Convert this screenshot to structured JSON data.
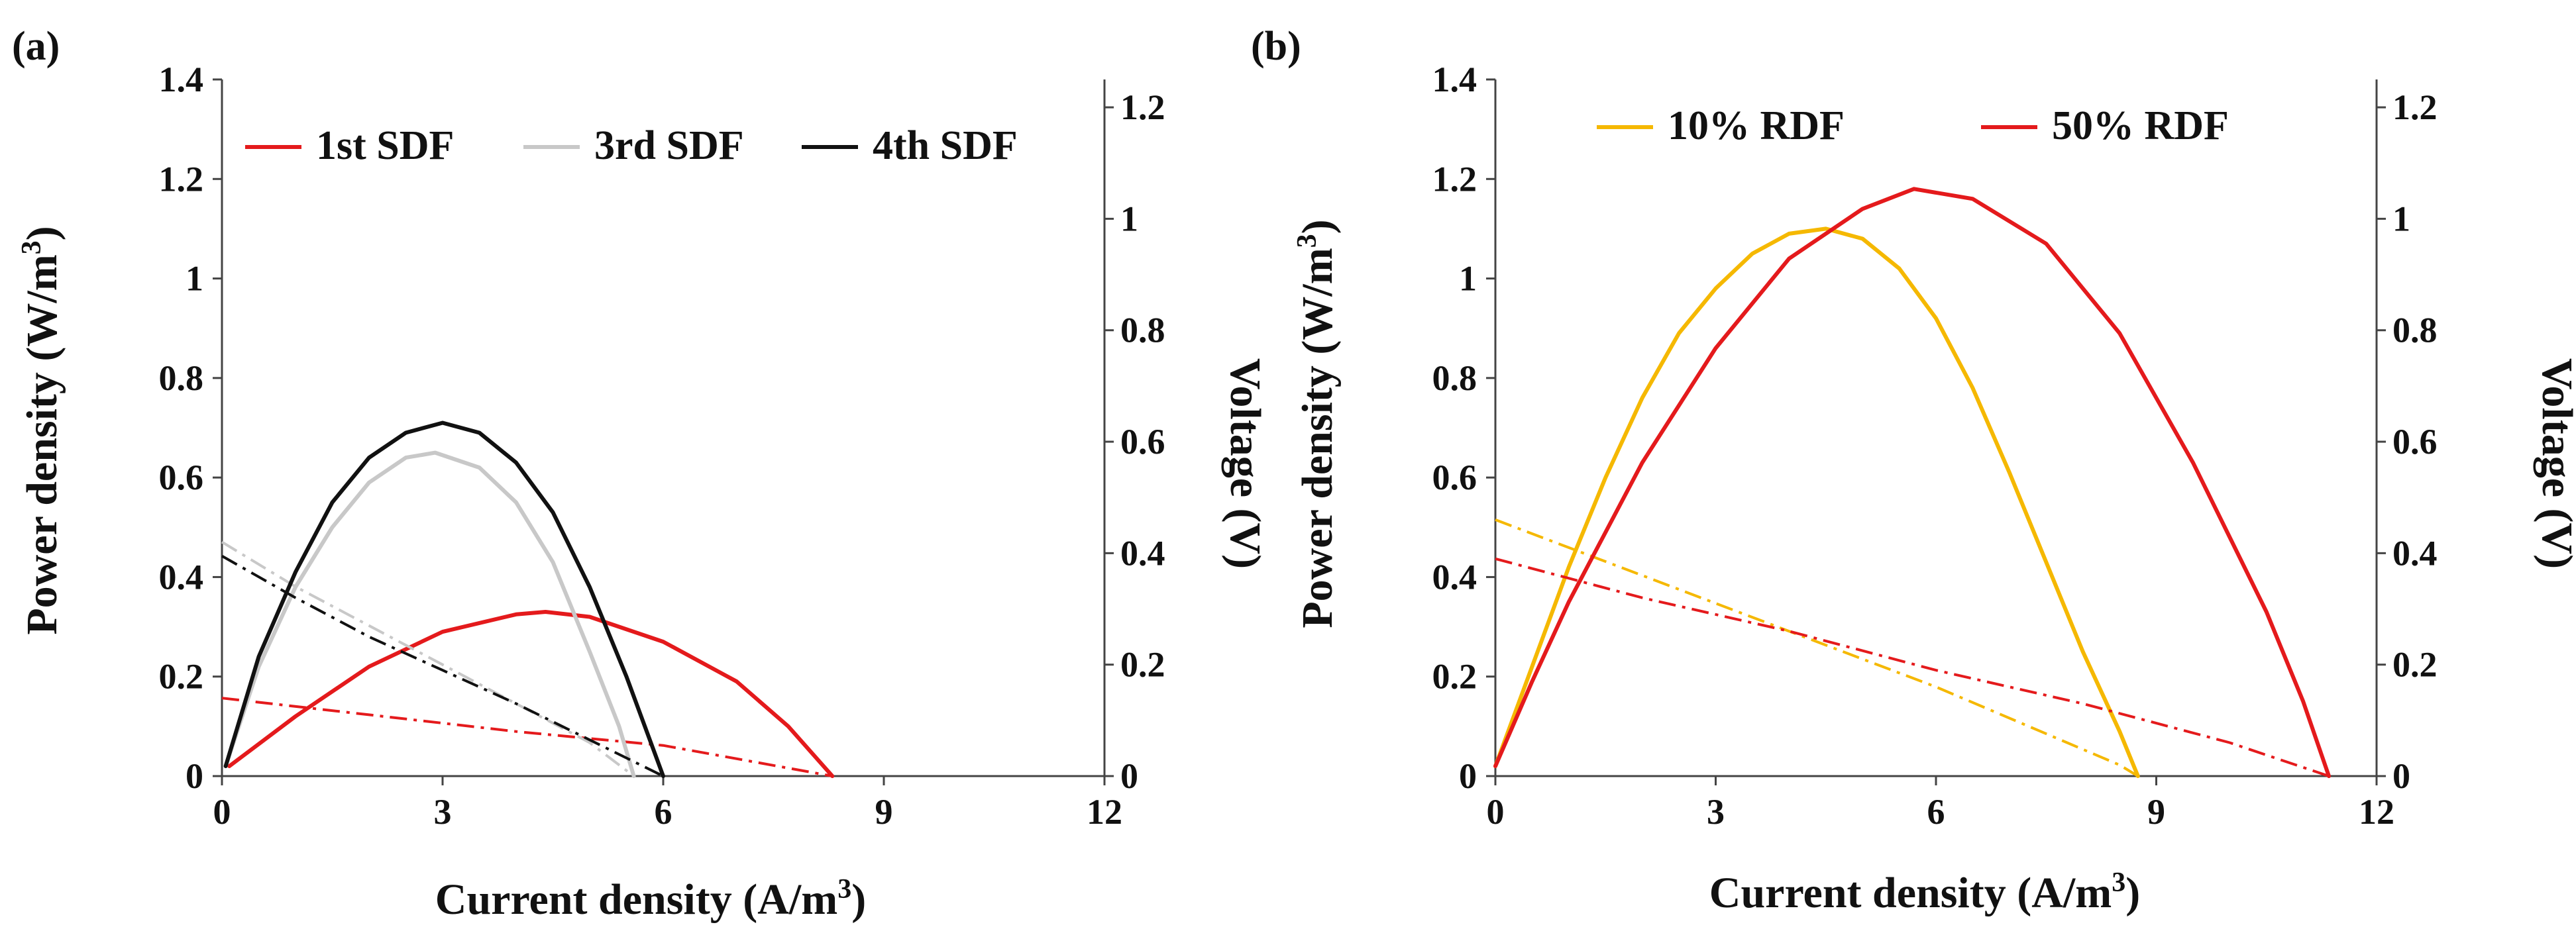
{
  "chart_data": [
    {
      "panel_label": "(a)",
      "type": "line",
      "xlabel": "Current density (A/m",
      "xlabel_sup": "3",
      "xlabel_end": ")",
      "ylabel": "Power density (W/m",
      "ylabel_sup": "3",
      "ylabel_end": ")",
      "y2label": "Voltage (V)",
      "xlim": [
        0,
        12
      ],
      "ylim": [
        0,
        1.4
      ],
      "y2lim": [
        0,
        1.25
      ],
      "xticks": [
        "0",
        "3",
        "6",
        "9",
        "12"
      ],
      "yticks": [
        "0",
        "0.2",
        "0.4",
        "0.6",
        "0.8",
        "1",
        "1.2",
        "1.4"
      ],
      "y2ticks": [
        "0",
        "0.2",
        "0.4",
        "0.6",
        "0.8",
        "1",
        "1.2"
      ],
      "legend_position": "top",
      "series": [
        {
          "name": "1st SDF",
          "color": "#e41a1c",
          "power": [
            [
              0.1,
              0.02
            ],
            [
              1,
              0.12
            ],
            [
              2,
              0.22
            ],
            [
              3,
              0.29
            ],
            [
              4,
              0.325
            ],
            [
              4.4,
              0.33
            ],
            [
              5,
              0.32
            ],
            [
              6,
              0.27
            ],
            [
              7,
              0.19
            ],
            [
              7.7,
              0.1
            ],
            [
              8.3,
              0.0
            ]
          ],
          "voltage": [
            [
              0,
              0.14
            ],
            [
              2,
              0.11
            ],
            [
              4,
              0.08
            ],
            [
              6,
              0.055
            ],
            [
              8.3,
              0.0
            ]
          ]
        },
        {
          "name": "3rd SDF",
          "color": "#c8c8c8",
          "power": [
            [
              0.05,
              0.02
            ],
            [
              0.5,
              0.22
            ],
            [
              1,
              0.38
            ],
            [
              1.5,
              0.5
            ],
            [
              2,
              0.59
            ],
            [
              2.5,
              0.64
            ],
            [
              2.9,
              0.65
            ],
            [
              3.5,
              0.62
            ],
            [
              4,
              0.55
            ],
            [
              4.5,
              0.43
            ],
            [
              5,
              0.25
            ],
            [
              5.4,
              0.1
            ],
            [
              5.6,
              0.0
            ]
          ],
          "voltage": [
            [
              0,
              0.42
            ],
            [
              1,
              0.34
            ],
            [
              2,
              0.27
            ],
            [
              3,
              0.2
            ],
            [
              4,
              0.13
            ],
            [
              5,
              0.06
            ],
            [
              5.6,
              0.0
            ]
          ]
        },
        {
          "name": "4th SDF",
          "color": "#111111",
          "power": [
            [
              0.05,
              0.02
            ],
            [
              0.5,
              0.24
            ],
            [
              1,
              0.41
            ],
            [
              1.5,
              0.55
            ],
            [
              2,
              0.64
            ],
            [
              2.5,
              0.69
            ],
            [
              3,
              0.71
            ],
            [
              3.5,
              0.69
            ],
            [
              4,
              0.63
            ],
            [
              4.5,
              0.53
            ],
            [
              5,
              0.38
            ],
            [
              5.5,
              0.2
            ],
            [
              6.0,
              0.0
            ]
          ],
          "voltage": [
            [
              0,
              0.395
            ],
            [
              1,
              0.32
            ],
            [
              2,
              0.25
            ],
            [
              3,
              0.19
            ],
            [
              4,
              0.13
            ],
            [
              5,
              0.065
            ],
            [
              6.0,
              0.0
            ]
          ]
        }
      ]
    },
    {
      "panel_label": "(b)",
      "type": "line",
      "xlabel": "Current density (A/m",
      "xlabel_sup": "3",
      "xlabel_end": ")",
      "ylabel": "Power density (W/m",
      "ylabel_sup": "3",
      "ylabel_end": ")",
      "y2label": "Voltage (V)",
      "xlim": [
        0,
        12
      ],
      "ylim": [
        0,
        1.4
      ],
      "y2lim": [
        0,
        1.25
      ],
      "xticks": [
        "0",
        "3",
        "6",
        "9",
        "12"
      ],
      "yticks": [
        "0",
        "0.2",
        "0.4",
        "0.6",
        "0.8",
        "1",
        "1.2",
        "1.4"
      ],
      "y2ticks": [
        "0",
        "0.2",
        "0.4",
        "0.6",
        "0.8",
        "1",
        "1.2"
      ],
      "legend_position": "top",
      "series": [
        {
          "name": "10% RDF",
          "color": "#f5b800",
          "power": [
            [
              0,
              0.02
            ],
            [
              0.5,
              0.22
            ],
            [
              1,
              0.42
            ],
            [
              1.5,
              0.6
            ],
            [
              2,
              0.76
            ],
            [
              2.5,
              0.89
            ],
            [
              3,
              0.98
            ],
            [
              3.5,
              1.05
            ],
            [
              4,
              1.09
            ],
            [
              4.5,
              1.1
            ],
            [
              5,
              1.08
            ],
            [
              5.5,
              1.02
            ],
            [
              6,
              0.92
            ],
            [
              6.5,
              0.78
            ],
            [
              7,
              0.61
            ],
            [
              7.5,
              0.43
            ],
            [
              8,
              0.25
            ],
            [
              8.5,
              0.09
            ],
            [
              8.75,
              0.0
            ]
          ],
          "voltage": [
            [
              0,
              0.46
            ],
            [
              2,
              0.36
            ],
            [
              4,
              0.26
            ],
            [
              6,
              0.16
            ],
            [
              8.5,
              0.02
            ],
            [
              8.75,
              0.0
            ]
          ]
        },
        {
          "name": "50% RDF",
          "color": "#e41a1c",
          "power": [
            [
              0,
              0.02
            ],
            [
              0.5,
              0.19
            ],
            [
              1,
              0.35
            ],
            [
              2,
              0.63
            ],
            [
              3,
              0.86
            ],
            [
              4,
              1.04
            ],
            [
              5,
              1.14
            ],
            [
              5.7,
              1.18
            ],
            [
              6.5,
              1.16
            ],
            [
              7.5,
              1.07
            ],
            [
              8.5,
              0.89
            ],
            [
              9.5,
              0.63
            ],
            [
              10.5,
              0.33
            ],
            [
              11.0,
              0.15
            ],
            [
              11.35,
              0.0
            ]
          ],
          "voltage": [
            [
              0,
              0.39
            ],
            [
              2,
              0.32
            ],
            [
              4,
              0.26
            ],
            [
              6,
              0.19
            ],
            [
              8,
              0.13
            ],
            [
              10,
              0.06
            ],
            [
              11.35,
              0.0
            ]
          ]
        }
      ]
    }
  ]
}
